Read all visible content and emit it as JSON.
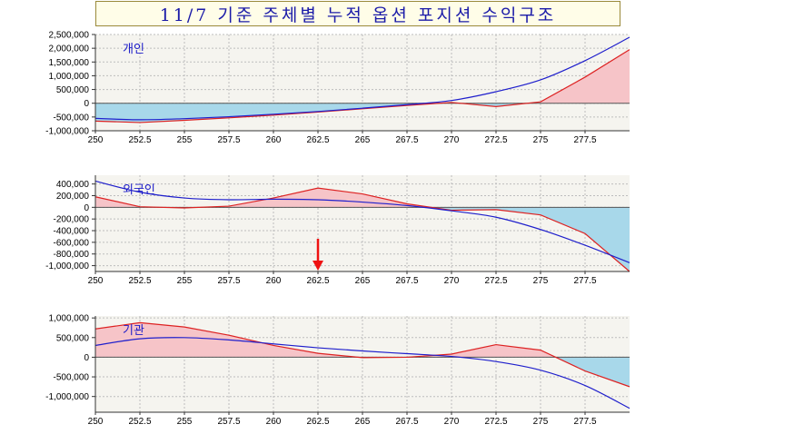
{
  "title": "11/7 기준 주체별 누적 옵션 포지션 수익구조",
  "colors": {
    "title_text": "#1a1aa8",
    "blue_line": "#1f1fcc",
    "red_line": "#dd2222",
    "pos_fill": "#f6c4c8",
    "neg_fill": "#a8d8ea",
    "arrow": "#ee1111",
    "plot_bg": "#f5f4ef"
  },
  "chart_data": [
    {
      "type": "area",
      "label": "개인",
      "xlim": [
        250,
        280
      ],
      "ylim": [
        -1000000,
        2500000
      ],
      "x_ticks": [
        "250",
        "252.5",
        "255",
        "257.5",
        "260",
        "262.5",
        "265",
        "267.5",
        "270",
        "272.5",
        "275",
        "277.5"
      ],
      "y_ticks": [
        "2,500,000",
        "2,000,000",
        "1,500,000",
        "1,000,000",
        "500,000",
        "0",
        "-500,000",
        "-1,000,000"
      ],
      "series": [
        {
          "color": "blue",
          "x": [
            250,
            252.5,
            255,
            257.5,
            260,
            262.5,
            265,
            267.5,
            270,
            272.5,
            275,
            277.5,
            280
          ],
          "values": [
            -550000,
            -600000,
            -560000,
            -490000,
            -400000,
            -300000,
            -180000,
            -50000,
            100000,
            420000,
            850000,
            1550000,
            2400000
          ]
        },
        {
          "color": "red",
          "x": [
            250,
            252.5,
            255,
            257.5,
            260,
            262.5,
            265,
            267.5,
            270,
            272.5,
            275,
            277.5,
            280
          ],
          "values": [
            -650000,
            -700000,
            -620000,
            -530000,
            -430000,
            -320000,
            -200000,
            -80000,
            30000,
            -120000,
            50000,
            950000,
            1950000
          ]
        }
      ]
    },
    {
      "type": "area",
      "label": "외국인",
      "xlim": [
        250,
        280
      ],
      "ylim": [
        -1100000,
        550000
      ],
      "x_ticks": [
        "250",
        "252.5",
        "255",
        "257.5",
        "260",
        "262.5",
        "265",
        "267.5",
        "270",
        "272.5",
        "275",
        "277.5"
      ],
      "y_ticks": [
        "400,000",
        "200,000",
        "0",
        "-200,000",
        "-400,000",
        "-600,000",
        "-800,000",
        "-1,000,000"
      ],
      "annotation": {
        "type": "arrow",
        "x": 262.5
      },
      "series": [
        {
          "color": "blue",
          "x": [
            250,
            252.5,
            255,
            257.5,
            260,
            262.5,
            265,
            267.5,
            270,
            272.5,
            275,
            277.5,
            280
          ],
          "values": [
            450000,
            260000,
            160000,
            130000,
            140000,
            130000,
            90000,
            30000,
            -60000,
            -170000,
            -380000,
            -650000,
            -950000
          ]
        },
        {
          "color": "red",
          "x": [
            250,
            252.5,
            255,
            257.5,
            260,
            262.5,
            265,
            267.5,
            270,
            272.5,
            275,
            277.5,
            280
          ],
          "values": [
            180000,
            10000,
            -10000,
            20000,
            160000,
            330000,
            230000,
            60000,
            -50000,
            -40000,
            -130000,
            -450000,
            -1100000
          ]
        }
      ]
    },
    {
      "type": "area",
      "label": "기관",
      "xlim": [
        250,
        280
      ],
      "ylim": [
        -1400000,
        1050000
      ],
      "x_ticks": [
        "250",
        "252.5",
        "255",
        "257.5",
        "260",
        "262.5",
        "265",
        "267.5",
        "270",
        "272.5",
        "275",
        "277.5"
      ],
      "y_ticks": [
        "1,000,000",
        "500,000",
        "0",
        "-500,000",
        "-1,000,000"
      ],
      "series": [
        {
          "color": "blue",
          "x": [
            250,
            252.5,
            255,
            257.5,
            260,
            262.5,
            265,
            267.5,
            270,
            272.5,
            275,
            277.5,
            280
          ],
          "values": [
            300000,
            470000,
            500000,
            440000,
            340000,
            240000,
            160000,
            90000,
            20000,
            -110000,
            -330000,
            -720000,
            -1300000
          ]
        },
        {
          "color": "red",
          "x": [
            250,
            252.5,
            255,
            257.5,
            260,
            262.5,
            265,
            267.5,
            270,
            272.5,
            275,
            277.5,
            280
          ],
          "values": [
            720000,
            880000,
            770000,
            560000,
            300000,
            100000,
            -10000,
            0,
            80000,
            320000,
            180000,
            -350000,
            -750000
          ]
        }
      ]
    }
  ]
}
